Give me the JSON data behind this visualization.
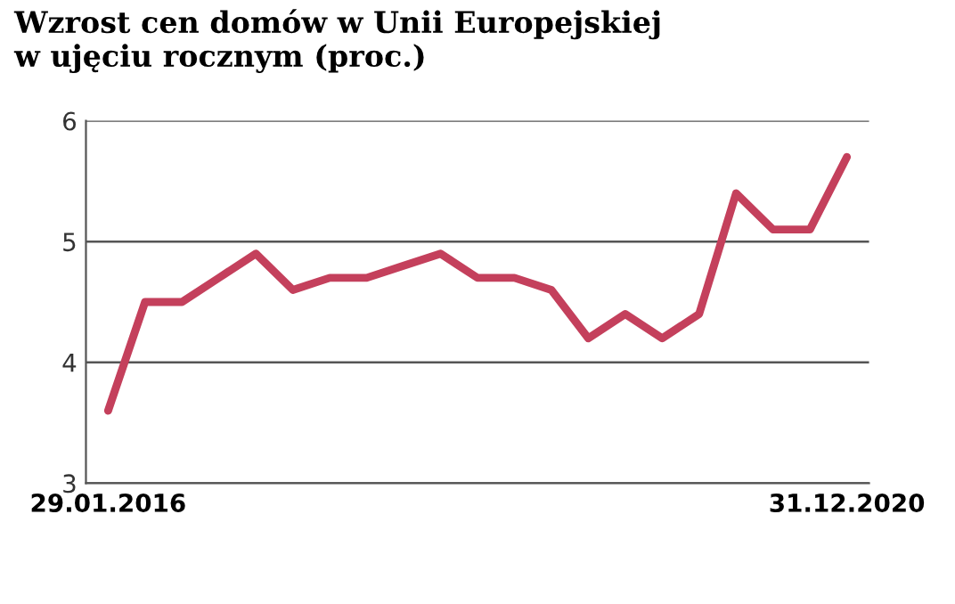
{
  "chart_data": {
    "type": "line",
    "title": "Wzrost cen domów w Unii Europejskiej\nw ujęciu rocznym (proc.)",
    "categories": [
      "29.01.2016",
      null,
      null,
      null,
      null,
      null,
      null,
      null,
      null,
      null,
      null,
      null,
      null,
      null,
      null,
      null,
      null,
      null,
      null,
      null,
      "31.12.2020"
    ],
    "series": [
      {
        "color": "#c4405c",
        "values": [
          3.6,
          4.5,
          4.5,
          4.7,
          4.9,
          4.6,
          4.7,
          4.7,
          4.8,
          4.9,
          4.7,
          4.7,
          4.6,
          4.2,
          4.4,
          4.2,
          4.4,
          5.4,
          5.1,
          5.1,
          5.7
        ]
      }
    ],
    "ylim": [
      3,
      6
    ],
    "yticks": [
      3,
      4,
      5,
      6
    ],
    "grid": "y",
    "legend": false,
    "marker": "none",
    "line_style": "solid"
  }
}
